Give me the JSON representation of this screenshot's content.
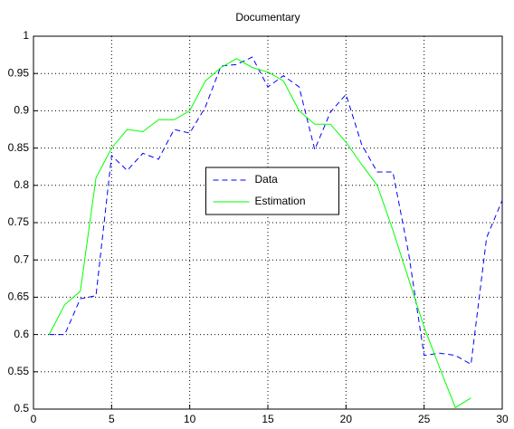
{
  "chart_data": {
    "type": "line",
    "title": "Documentary",
    "x": [
      1,
      2,
      3,
      4,
      5,
      6,
      7,
      8,
      9,
      10,
      11,
      12,
      13,
      14,
      15,
      16,
      17,
      18,
      19,
      20,
      21,
      22,
      23,
      24,
      25,
      26,
      27,
      28,
      29,
      30
    ],
    "series": [
      {
        "name": "Data",
        "color": "#0000ff",
        "dash": true,
        "values": [
          0.6,
          0.6,
          0.648,
          0.652,
          0.84,
          0.82,
          0.843,
          0.835,
          0.875,
          0.87,
          0.905,
          0.96,
          0.962,
          0.972,
          0.932,
          0.947,
          0.932,
          0.848,
          0.898,
          0.922,
          0.855,
          0.818,
          0.818,
          0.71,
          0.572,
          0.575,
          0.572,
          0.56,
          0.73,
          0.78
        ]
      },
      {
        "name": "Estimation",
        "color": "#00ff00",
        "dash": false,
        "values": [
          0.6,
          0.64,
          0.658,
          0.81,
          0.85,
          0.875,
          0.872,
          0.888,
          0.888,
          0.9,
          0.94,
          0.958,
          0.97,
          0.958,
          0.952,
          0.94,
          0.9,
          0.882,
          0.882,
          0.858,
          0.828,
          0.8,
          0.74,
          0.675,
          0.61,
          0.555,
          0.502,
          0.515,
          null,
          null
        ]
      }
    ],
    "xlim": [
      0,
      30
    ],
    "xticks": [
      0,
      5,
      10,
      15,
      20,
      25,
      30
    ],
    "ylim": [
      0.5,
      1
    ],
    "yticks": [
      0.5,
      0.55,
      0.6,
      0.65,
      0.7,
      0.75,
      0.8,
      0.85,
      0.9,
      0.95,
      1
    ],
    "grid": true,
    "legend_position": "center"
  }
}
